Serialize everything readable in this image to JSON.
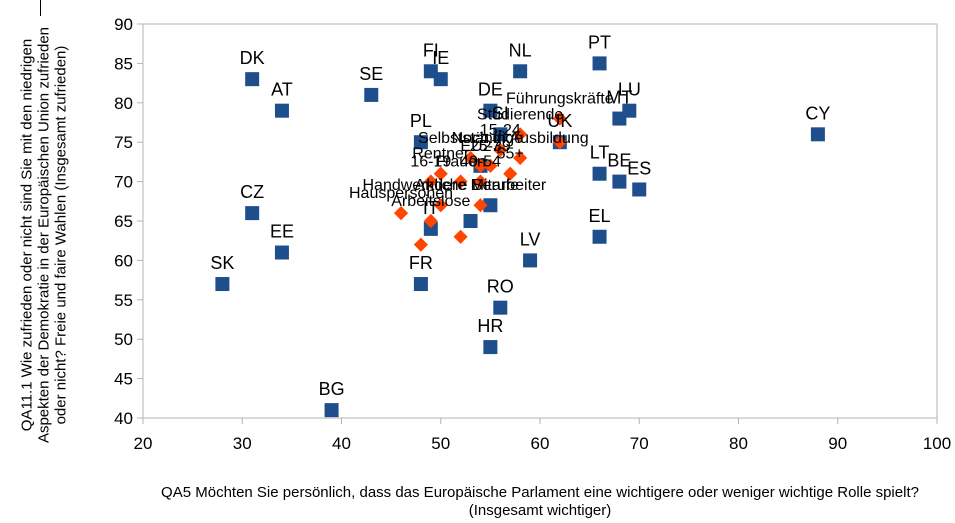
{
  "chart_data": {
    "type": "scatter",
    "xlabel": "QA5 Möchten Sie persönlich, dass das Europäische Parlament eine wichtigere oder weniger wichtige Rolle spielt? (Insgesamt wichtiger)",
    "ylabel": "QA11.1 Wie zufrieden oder nicht sind Sie mit den niedrigen Aspekten der Demokratie in der Europäischen Union zufrieden oder nicht? Freie und faire Wahlen (Insgesamt zufrieden)",
    "xlim": [
      20,
      100
    ],
    "ylim": [
      40,
      90
    ],
    "xticks": [
      20,
      30,
      40,
      50,
      60,
      70,
      80,
      90,
      100
    ],
    "yticks": [
      40,
      45,
      50,
      55,
      60,
      65,
      70,
      75,
      80,
      85,
      90
    ],
    "grid": false,
    "colors": {
      "countries": "#1f4e8c",
      "groups": "#ff4500"
    },
    "series": [
      {
        "marker": "square",
        "points": [
          {
            "label": "DK",
            "x": 31,
            "y": 83
          },
          {
            "label": "AT",
            "x": 34,
            "y": 79
          },
          {
            "label": "SE",
            "x": 43,
            "y": 81
          },
          {
            "label": "FI",
            "x": 49,
            "y": 84
          },
          {
            "label": "IE",
            "x": 50,
            "y": 83
          },
          {
            "label": "NL",
            "x": 58,
            "y": 84
          },
          {
            "label": "PT",
            "x": 66,
            "y": 85
          },
          {
            "label": "LU",
            "x": 69,
            "y": 79
          },
          {
            "label": "MT",
            "x": 68,
            "y": 78
          },
          {
            "label": "DE",
            "x": 55,
            "y": 79
          },
          {
            "label": "CY",
            "x": 88,
            "y": 76
          },
          {
            "label": "PL",
            "x": 48,
            "y": 75
          },
          {
            "label": "SI",
            "x": 56,
            "y": 76
          },
          {
            "label": "UK",
            "x": 62,
            "y": 75
          },
          {
            "label": "LT",
            "x": 66,
            "y": 71
          },
          {
            "label": "BE",
            "x": 68,
            "y": 70
          },
          {
            "label": "ES",
            "x": 70,
            "y": 69
          },
          {
            "label": "CZ",
            "x": 31,
            "y": 66
          },
          {
            "label": "EE",
            "x": 34,
            "y": 61
          },
          {
            "label": "EL",
            "x": 66,
            "y": 63
          },
          {
            "label": "IT",
            "x": 49,
            "y": 64
          },
          {
            "label": "LV",
            "x": 59,
            "y": 60
          },
          {
            "label": "SK",
            "x": 28,
            "y": 57
          },
          {
            "label": "FR",
            "x": 48,
            "y": 57
          },
          {
            "label": "RO",
            "x": 56,
            "y": 54
          },
          {
            "label": "HR",
            "x": 55,
            "y": 49
          },
          {
            "label": "BG",
            "x": 39,
            "y": 41
          },
          {
            "label": "",
            "x": 53,
            "y": 65
          },
          {
            "label": "",
            "x": 55,
            "y": 67
          },
          {
            "label": "",
            "x": 54,
            "y": 72
          }
        ]
      },
      {
        "marker": "diamond",
        "points": [
          {
            "label": "Führungskräfte",
            "x": 62,
            "y": 78
          },
          {
            "label": "Studierende",
            "x": 58,
            "y": 76
          },
          {
            "label": "Selbstständige",
            "x": 53,
            "y": 73
          },
          {
            "label": "Noch in Ausbildung",
            "x": 58,
            "y": 73
          },
          {
            "label": "15-24",
            "x": 56,
            "y": 74
          },
          {
            "label": "Rentner",
            "x": 50,
            "y": 71
          },
          {
            "label": "EU27",
            "x": 54,
            "y": 72
          },
          {
            "label": "25-39",
            "x": 55,
            "y": 72
          },
          {
            "label": "40-54",
            "x": 54,
            "y": 70
          },
          {
            "label": "Frauen",
            "x": 52,
            "y": 70
          },
          {
            "label": "16-19",
            "x": 49,
            "y": 70
          },
          {
            "label": "55+",
            "x": 57,
            "y": 71
          },
          {
            "label": "Handwerkliche Berufe",
            "x": 50,
            "y": 67
          },
          {
            "label": "Arbeitslose",
            "x": 49,
            "y": 65
          },
          {
            "label": "Hauspersonen",
            "x": 46,
            "y": 66
          },
          {
            "label": "Andere Mitarbeiter",
            "x": 54,
            "y": 67
          },
          {
            "label": "",
            "x": 52,
            "y": 63
          },
          {
            "label": "",
            "x": 48,
            "y": 62
          },
          {
            "label": "",
            "x": 62,
            "y": 75
          }
        ]
      }
    ]
  }
}
